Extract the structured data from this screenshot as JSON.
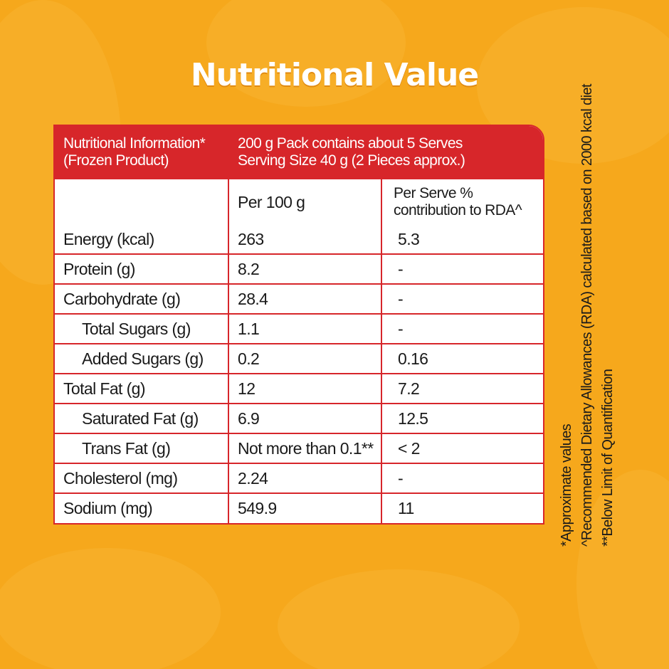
{
  "title": "Nutritional Value",
  "table": {
    "header": {
      "left": [
        "Nutritional Information*",
        "(Frozen Product)"
      ],
      "right": [
        "200 g Pack contains about 5 Serves",
        "Serving Size 40 g (2 Pieces approx.)"
      ]
    },
    "columns": [
      "Per 100 g",
      [
        "Per Serve %",
        "contribution to RDA^"
      ]
    ],
    "rows": [
      [
        "Energy (kcal)",
        "263",
        "5.3"
      ],
      [
        "Protein (g)",
        "8.2",
        "-"
      ],
      [
        "Carbohydrate (g)",
        "28.4",
        "-"
      ],
      [
        "Total Sugars (g)",
        "1.1",
        "-"
      ],
      [
        "Added Sugars (g)",
        "0.2",
        "0.16"
      ],
      [
        "Total Fat (g)",
        "12",
        "7.2"
      ],
      [
        "Saturated Fat (g)",
        "6.9",
        "12.5"
      ],
      [
        "Trans Fat (g)",
        "Not more than 0.1**",
        "< 2"
      ],
      [
        "Cholesterol (mg)",
        "2.24",
        "-"
      ],
      [
        "Sodium (mg)",
        "549.9",
        "11"
      ]
    ]
  },
  "footnotes": [
    "*Approximate values",
    "^Recommended Dietary Allowances (RDA) calculated based on 2000 kcal diet",
    "**Below Limit of Quantification"
  ]
}
